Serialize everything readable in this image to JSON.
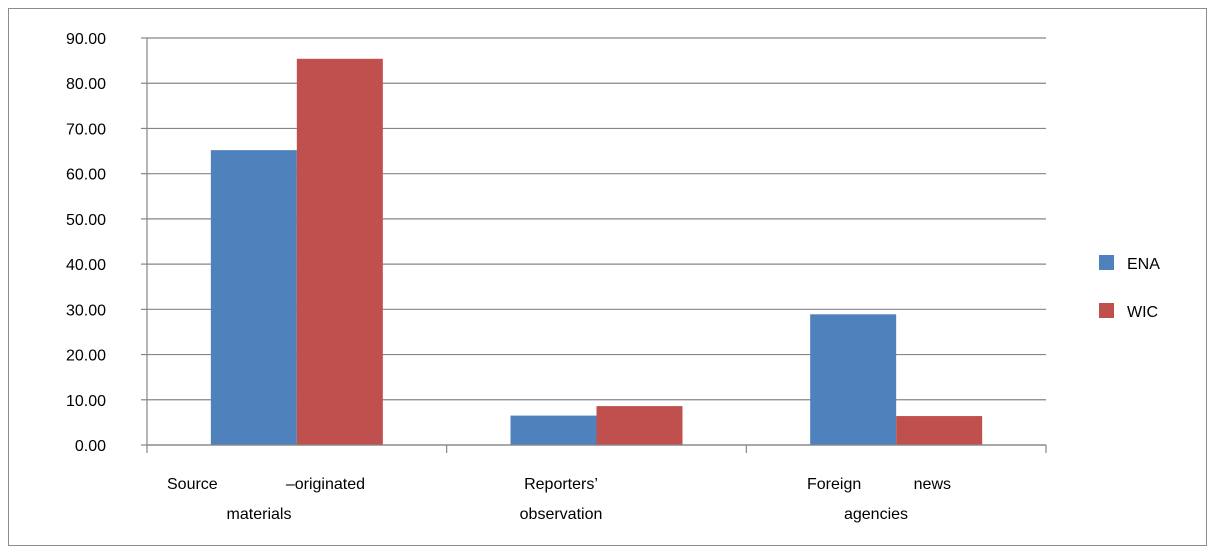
{
  "chart_data": {
    "type": "bar",
    "categories": [
      [
        "Source",
        "–originated",
        "materials"
      ],
      [
        "Reporters’",
        "observation"
      ],
      [
        "Foreign",
        "news",
        "agencies"
      ]
    ],
    "series": [
      {
        "name": "ENA",
        "color": "#4f81bd",
        "values": [
          65.2,
          6.5,
          28.9
        ]
      },
      {
        "name": "WIC",
        "color": "#c0504d",
        "values": [
          85.4,
          8.6,
          6.4
        ]
      }
    ],
    "ylim": [
      0,
      90
    ],
    "yticks": [
      "0.00",
      "10.00",
      "20.00",
      "30.00",
      "40.00",
      "50.00",
      "60.00",
      "70.00",
      "80.00",
      "90.00"
    ],
    "grid": true,
    "legend": "right",
    "title": "",
    "xlabel": "",
    "ylabel": ""
  }
}
